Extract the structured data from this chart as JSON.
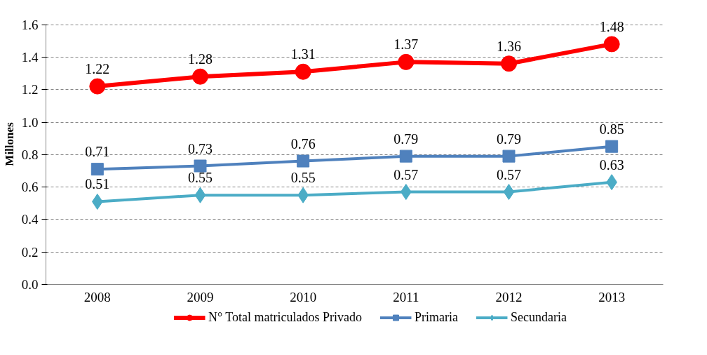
{
  "chart_data": {
    "type": "line",
    "ylabel": "Millones",
    "categories": [
      "2008",
      "2009",
      "2010",
      "2011",
      "2012",
      "2013"
    ],
    "series": [
      {
        "name": "N° Total matriculados Privado",
        "color": "#ff0000",
        "marker": "circle",
        "values": [
          1.22,
          1.28,
          1.31,
          1.37,
          1.36,
          1.48
        ]
      },
      {
        "name": "Primaria",
        "color": "#4f81bd",
        "marker": "square",
        "values": [
          0.71,
          0.73,
          0.76,
          0.79,
          0.79,
          0.85
        ]
      },
      {
        "name": "Secundaria",
        "color": "#4bacc6",
        "marker": "diamond",
        "values": [
          0.51,
          0.55,
          0.55,
          0.57,
          0.57,
          0.63
        ]
      }
    ],
    "ylim": [
      0,
      1.6
    ],
    "yticks": [
      {
        "value": 0,
        "label": "0.0"
      },
      0.2,
      0.4,
      0.6,
      0.8,
      {
        "value": 1,
        "label": "1.0"
      },
      1.2,
      1.4,
      1.6
    ],
    "grid": "y",
    "legend": "bottom",
    "data_labels": true,
    "line_style": "solid"
  }
}
